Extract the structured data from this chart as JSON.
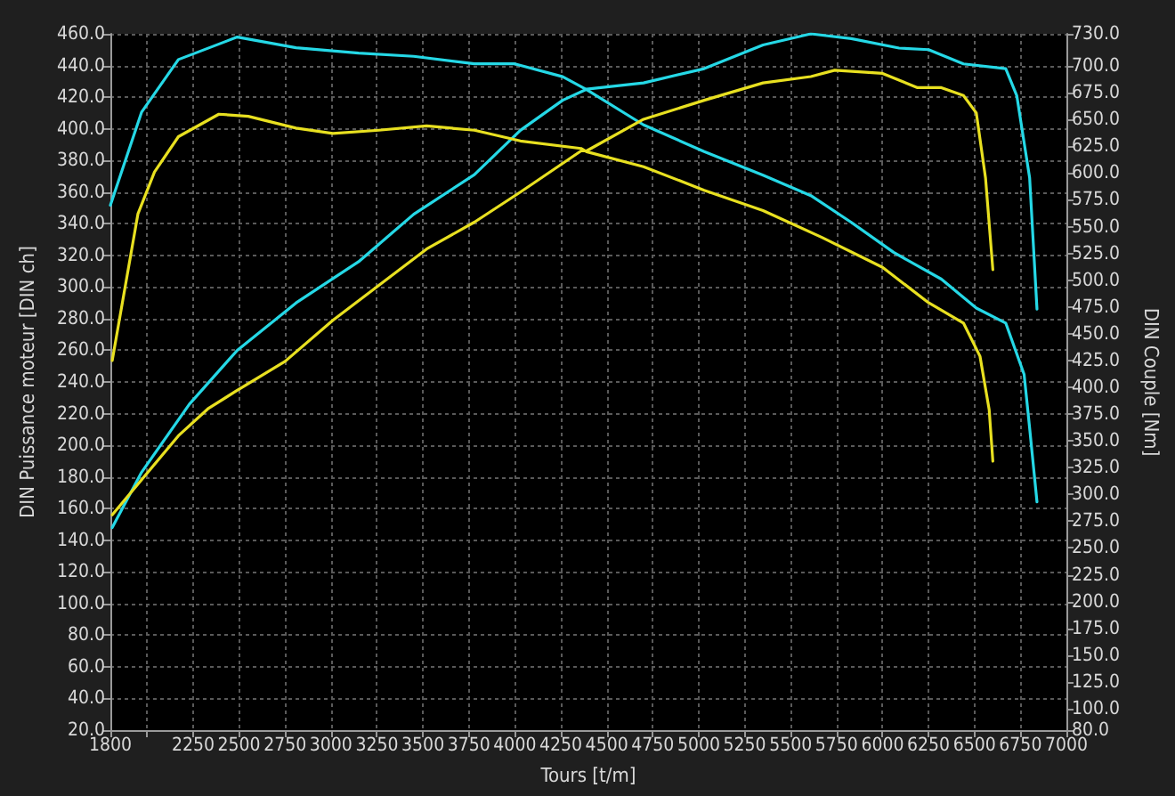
{
  "chart_data": {
    "type": "line",
    "xlabel": "Tours [t/m]",
    "ylabel": "DIN Puissance moteur [DIN ch]",
    "y2label": "DIN Couple [Nm]",
    "xlim": [
      1800,
      7000
    ],
    "xticks": [
      1800,
      {
        "value": 2000,
        "label": null
      },
      2250,
      2500,
      2750,
      3000,
      3250,
      3500,
      3750,
      4000,
      4250,
      4500,
      4750,
      5000,
      5250,
      5500,
      5750,
      6000,
      6250,
      6500,
      6750,
      7000
    ],
    "ylim": [
      20,
      460
    ],
    "yticks": [
      {
        "value": 20,
        "label": "20.0"
      },
      {
        "value": 40,
        "label": "40.0"
      },
      {
        "value": 60,
        "label": "60.0"
      },
      {
        "value": 80,
        "label": "80.0"
      },
      {
        "value": 100,
        "label": "100.0"
      },
      {
        "value": 120,
        "label": "120.0"
      },
      {
        "value": 140,
        "label": "140.0"
      },
      {
        "value": 160,
        "label": "160.0"
      },
      {
        "value": 180,
        "label": "180.0"
      },
      {
        "value": 200,
        "label": "200.0"
      },
      {
        "value": 220,
        "label": "220.0"
      },
      {
        "value": 240,
        "label": "240.0"
      },
      {
        "value": 260,
        "label": "260.0"
      },
      {
        "value": 280,
        "label": "280.0"
      },
      {
        "value": 300,
        "label": "300.0"
      },
      {
        "value": 320,
        "label": "320.0"
      },
      {
        "value": 340,
        "label": "340.0"
      },
      {
        "value": 360,
        "label": "360.0"
      },
      {
        "value": 380,
        "label": "380.0"
      },
      {
        "value": 400,
        "label": "400.0"
      },
      {
        "value": 420,
        "label": "420.0"
      },
      {
        "value": 440,
        "label": "440.0"
      },
      {
        "value": 460,
        "label": "460.0"
      }
    ],
    "y2lim": [
      80,
      730
    ],
    "y2ticks": [
      {
        "value": 80,
        "label": "80.0"
      },
      {
        "value": 100,
        "label": "100.0"
      },
      {
        "value": 125,
        "label": "125.0"
      },
      {
        "value": 150,
        "label": "150.0"
      },
      {
        "value": 175,
        "label": "175.0"
      },
      {
        "value": 200,
        "label": "200.0"
      },
      {
        "value": 225,
        "label": "225.0"
      },
      {
        "value": 250,
        "label": "250.0"
      },
      {
        "value": 275,
        "label": "275.0"
      },
      {
        "value": 300,
        "label": "300.0"
      },
      {
        "value": 325,
        "label": "325.0"
      },
      {
        "value": 350,
        "label": "350.0"
      },
      {
        "value": 375,
        "label": "375.0"
      },
      {
        "value": 400,
        "label": "400.0"
      },
      {
        "value": 425,
        "label": "425.0"
      },
      {
        "value": 450,
        "label": "450.0"
      },
      {
        "value": 475,
        "label": "475.0"
      },
      {
        "value": 500,
        "label": "500.0"
      },
      {
        "value": 525,
        "label": "525.0"
      },
      {
        "value": 550,
        "label": "550.0"
      },
      {
        "value": 575,
        "label": "575.0"
      },
      {
        "value": 600,
        "label": "600.0"
      },
      {
        "value": 625,
        "label": "625.0"
      },
      {
        "value": 650,
        "label": "650.0"
      },
      {
        "value": 675,
        "label": "675.0"
      },
      {
        "value": 700,
        "label": "700.0"
      },
      {
        "value": 730,
        "label": "730.0"
      }
    ],
    "grid": true,
    "series": [
      {
        "color": "#25d8e6",
        "x": [
          1810,
          1970,
          2230,
          2490,
          2810,
          3150,
          3450,
          3780,
          4030,
          4260,
          4390,
          4700,
          5030,
          5350,
          5610,
          5830,
          6090,
          6250,
          6440,
          6670,
          6730,
          6800,
          6840
        ],
        "values": [
          148,
          183,
          226,
          260,
          290,
          316,
          346,
          371,
          399,
          418,
          425,
          429,
          438,
          453,
          460,
          457,
          451,
          450,
          441,
          438,
          421,
          369,
          286
        ]
      },
      {
        "color": "#25d8e6",
        "axis": "y2",
        "x": [
          1800,
          1970,
          2170,
          2490,
          2810,
          3150,
          3450,
          3780,
          4000,
          4260,
          4390,
          4700,
          5030,
          5350,
          5610,
          5830,
          6060,
          6320,
          6510,
          6670,
          6770,
          6800,
          6840
        ],
        "values": [
          570,
          657,
          706,
          727,
          717,
          712,
          709,
          702,
          702,
          690,
          678,
          645,
          620,
          598,
          579,
          554,
          526,
          501,
          474,
          460,
          412,
          362,
          293
        ]
      },
      {
        "color": "#e8e020",
        "x": [
          1810,
          2170,
          2330,
          2480,
          2750,
          3010,
          3260,
          3520,
          3780,
          4030,
          4360,
          4390,
          4700,
          5030,
          5350,
          5610,
          5740,
          6000,
          6190,
          6320,
          6440,
          6510,
          6560,
          6600
        ],
        "values": [
          156,
          206,
          223,
          234,
          253,
          279,
          301,
          324,
          341,
          360,
          386,
          386,
          406,
          418,
          429,
          433,
          437,
          435,
          426,
          426,
          421,
          410,
          369,
          311
        ]
      },
      {
        "color": "#e8e020",
        "axis": "y2",
        "x": [
          1810,
          1950,
          2040,
          2170,
          2390,
          2550,
          2810,
          3010,
          3260,
          3520,
          3780,
          4030,
          4360,
          4390,
          4700,
          5030,
          5350,
          5670,
          6000,
          6250,
          6440,
          6530,
          6580,
          6600
        ],
        "values": [
          425,
          562,
          601,
          634,
          655,
          653,
          642,
          637,
          640,
          644,
          640,
          630,
          623,
          620,
          606,
          584,
          565,
          540,
          512,
          479,
          460,
          429,
          379,
          331
        ]
      }
    ]
  }
}
